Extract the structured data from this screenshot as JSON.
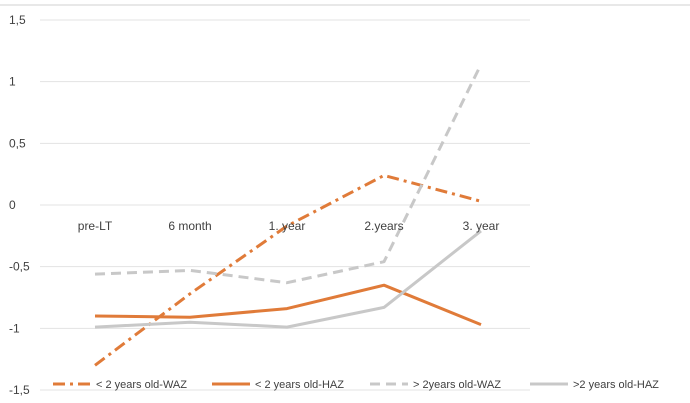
{
  "chart_data": {
    "type": "line",
    "categories": [
      "pre-LT",
      "6 month",
      "1. year",
      "2.years",
      "3. year"
    ],
    "ylim": [
      -1.5,
      1.5
    ],
    "yticks": [
      1.5,
      1,
      0.5,
      0,
      -0.5,
      -1,
      -1.5
    ],
    "ytick_labels": [
      "1,5",
      "1",
      "0,5",
      "0",
      "-0,5",
      "-1",
      "-1,5"
    ],
    "grid": true,
    "legend_position": "bottom",
    "series": [
      {
        "name": "< 2 years old-WAZ",
        "values": [
          -1.3,
          -0.72,
          -0.17,
          0.24,
          0.03
        ],
        "color": "#E07B39",
        "style": "dashdot"
      },
      {
        "name": "< 2 years old-HAZ",
        "values": [
          -0.9,
          -0.91,
          -0.84,
          -0.65,
          -0.97
        ],
        "color": "#E07B39",
        "style": "solid"
      },
      {
        "name": "> 2years old-WAZ",
        "values": [
          -0.56,
          -0.53,
          -0.63,
          -0.46,
          1.14
        ],
        "color": "#C8C8C8",
        "style": "dashed"
      },
      {
        "name": ">2 years old-HAZ",
        "values": [
          -0.99,
          -0.95,
          -0.99,
          -0.83,
          -0.21
        ],
        "color": "#C8C8C8",
        "style": "solid"
      }
    ]
  }
}
